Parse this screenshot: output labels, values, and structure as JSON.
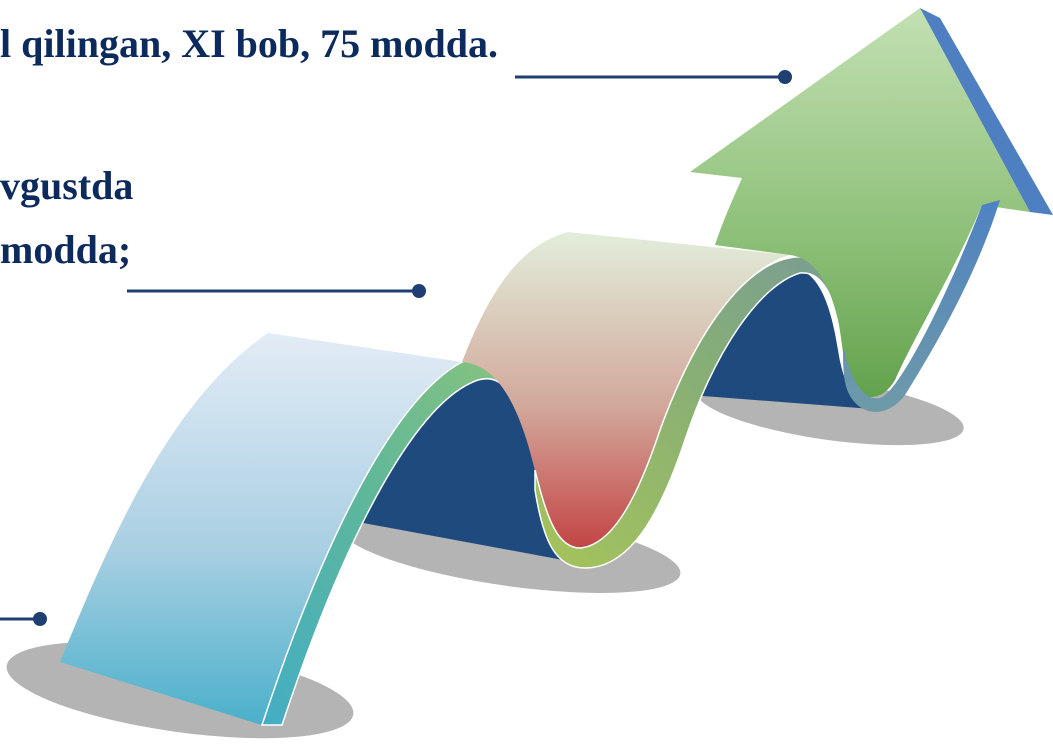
{
  "texts": {
    "line1": "l qilingan, XI bob, 75 modda.",
    "line2": "vgustda",
    "line3": "modda;"
  },
  "colors": {
    "text": "#0d2a5c",
    "connector": "#1f3f73",
    "shadow": "#b4b4b4",
    "fold_dark": "#1f4a7d",
    "ribbon_light": "#dfe9f4",
    "ribbon_blue": "#4fb0cc",
    "ribbon_red": "#c74a4a",
    "ribbon_green": "#6aa655",
    "arrow_light": "#b9d8a6",
    "arrow_edge": "#4e7fc1"
  }
}
